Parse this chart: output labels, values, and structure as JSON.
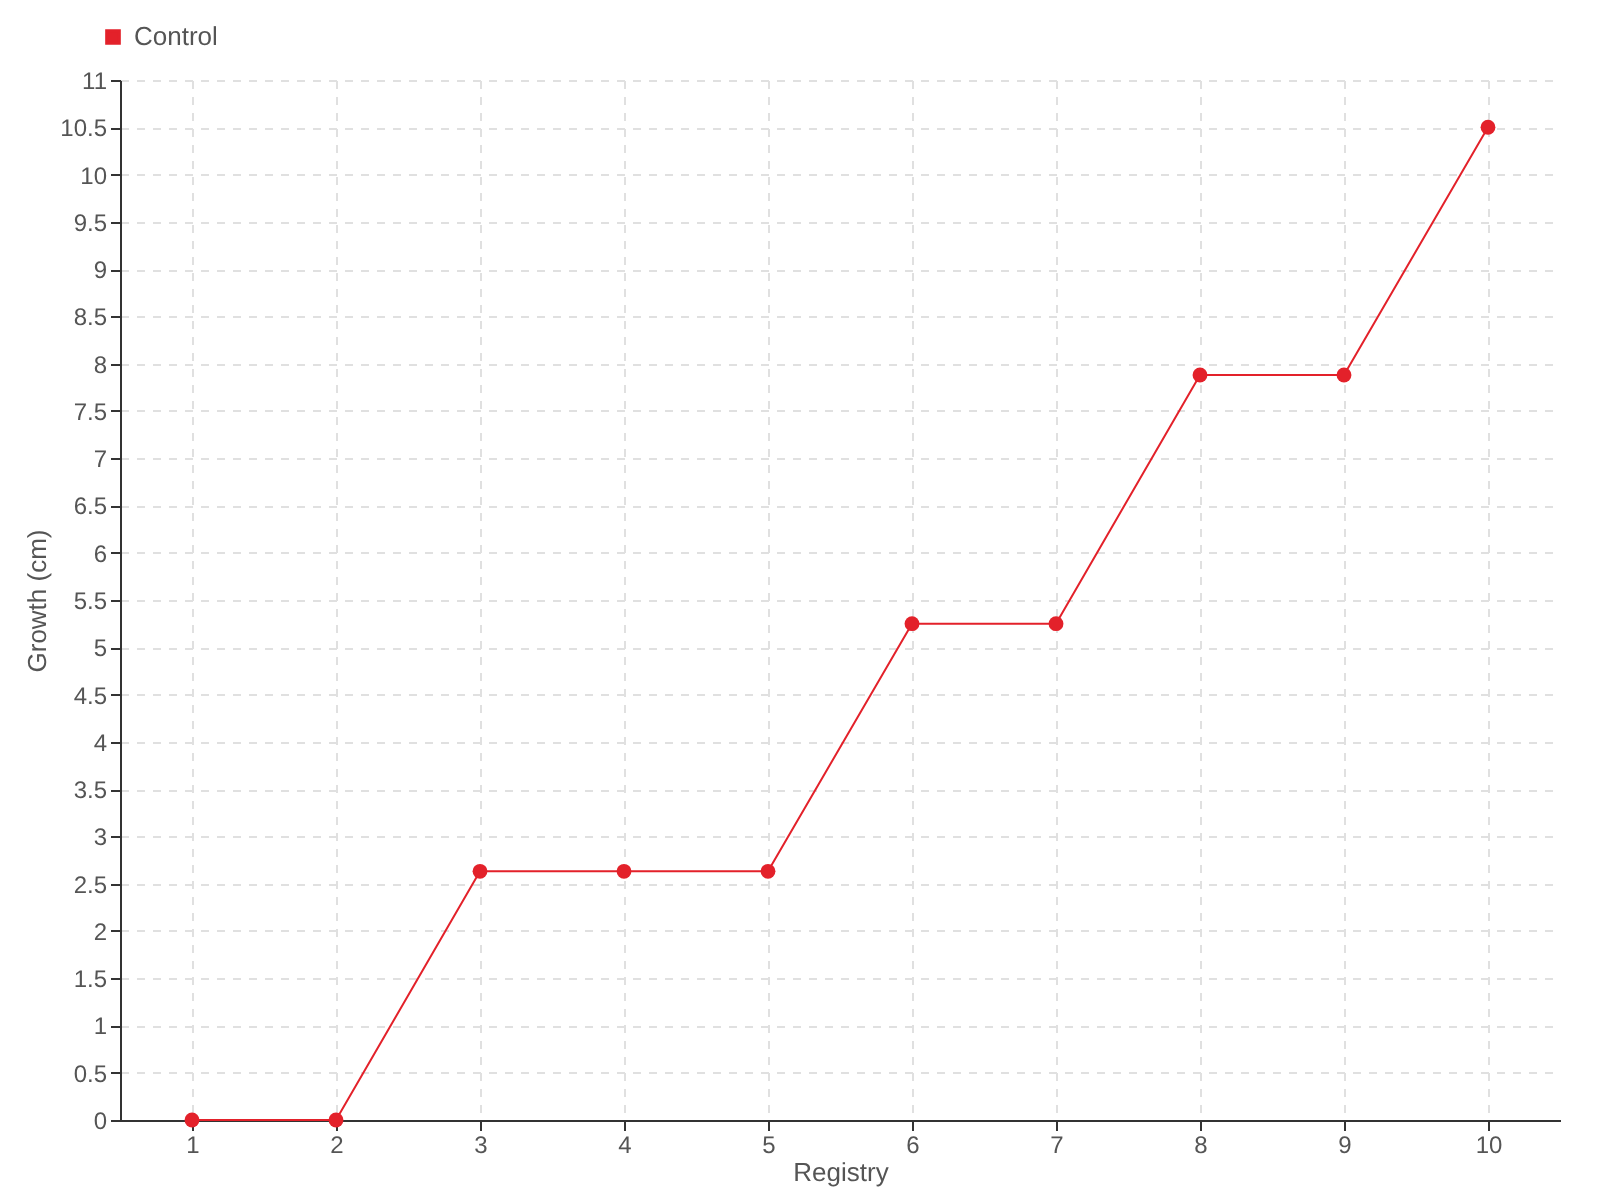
{
  "chart_data": {
    "type": "line",
    "xlabel": "Registry",
    "ylabel": "Growth (cm)",
    "categories": [
      "1",
      "2",
      "3",
      "4",
      "5",
      "6",
      "7",
      "8",
      "9",
      "10"
    ],
    "series": [
      {
        "name": "Control",
        "color": "#e3212a",
        "values": [
          0,
          0,
          2.63,
          2.63,
          2.63,
          5.25,
          5.25,
          7.88,
          7.88,
          10.5
        ]
      }
    ],
    "ylim": [
      0,
      11
    ],
    "yticks": [
      0,
      0.5,
      1,
      1.5,
      2,
      2.5,
      3,
      3.5,
      4,
      4.5,
      5,
      5.5,
      6,
      6.5,
      7,
      7.5,
      8,
      8.5,
      9,
      9.5,
      10,
      10.5,
      11
    ],
    "grid": true,
    "legend": "top left",
    "marker": "circle",
    "line_style": "solid"
  }
}
